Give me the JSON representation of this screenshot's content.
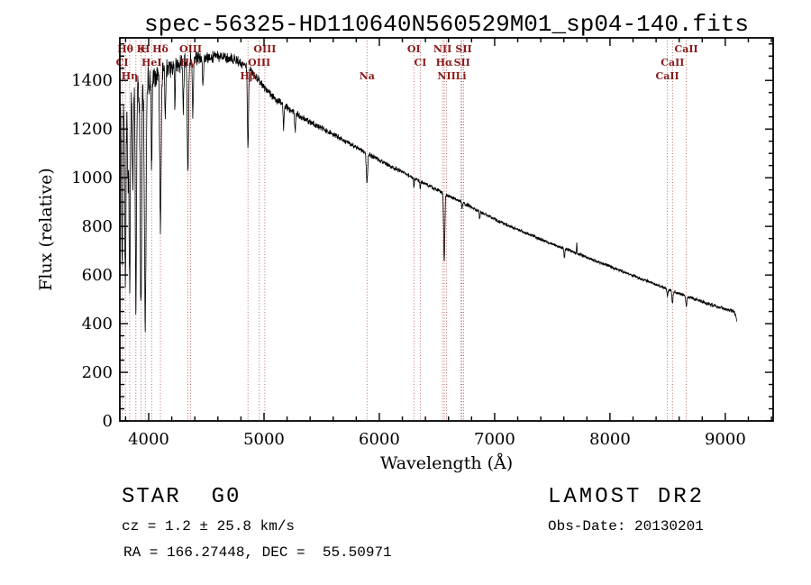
{
  "title": "spec-56325-HD110640N560529M01_sp04-140.fits",
  "footer": {
    "object_class": "STAR",
    "subclass": "G0",
    "survey": "LAMOST DR2",
    "cz_line": "cz = 1.2 ± 25.8 km/s",
    "obs_date_line": "Obs-Date: 20130201",
    "radec_line": "RA = 166.27448, DEC =  55.50971"
  },
  "chart_data": {
    "type": "line",
    "title": "spec-56325-HD110640N560529M01_sp04-140.fits",
    "xlabel": "Wavelength (Å)",
    "ylabel": "Flux (relative)",
    "xlim": [
      3750,
      9415
    ],
    "ylim": [
      0,
      1575
    ],
    "x_ticks": [
      4000,
      5000,
      6000,
      7000,
      8000,
      9000
    ],
    "y_ticks": [
      0,
      200,
      400,
      600,
      800,
      1000,
      1200,
      1400
    ],
    "x_minor_step": 200,
    "y_minor_step": 50,
    "grid": false,
    "legend": "none",
    "line_color": "#000000",
    "marker_line_color": "#b05858",
    "marker_label_color": "#8b1a1a",
    "seed": 20130201,
    "sample_step": 2,
    "wavelength_range": [
      3752,
      9100
    ],
    "continuum": [
      [
        3750,
        1280
      ],
      [
        3850,
        1330
      ],
      [
        3950,
        1375
      ],
      [
        4050,
        1415
      ],
      [
        4150,
        1448
      ],
      [
        4250,
        1468
      ],
      [
        4350,
        1480
      ],
      [
        4450,
        1492
      ],
      [
        4550,
        1500
      ],
      [
        4650,
        1498
      ],
      [
        4750,
        1485
      ],
      [
        4850,
        1458
      ],
      [
        4950,
        1405
      ],
      [
        5050,
        1345
      ],
      [
        5150,
        1305
      ],
      [
        5250,
        1272
      ],
      [
        5350,
        1243
      ],
      [
        5450,
        1216
      ],
      [
        5550,
        1190
      ],
      [
        5650,
        1164
      ],
      [
        5750,
        1138
      ],
      [
        5850,
        1112
      ],
      [
        5950,
        1086
      ],
      [
        6050,
        1060
      ],
      [
        6150,
        1035
      ],
      [
        6250,
        1010
      ],
      [
        6350,
        986
      ],
      [
        6450,
        962
      ],
      [
        6550,
        938
      ],
      [
        6650,
        914
      ],
      [
        6750,
        890
      ],
      [
        6850,
        866
      ],
      [
        6950,
        842
      ],
      [
        7050,
        818
      ],
      [
        7150,
        797
      ],
      [
        7250,
        777
      ],
      [
        7350,
        757
      ],
      [
        7450,
        737
      ],
      [
        7550,
        718
      ],
      [
        7650,
        700
      ],
      [
        7750,
        682
      ],
      [
        7850,
        663
      ],
      [
        7950,
        645
      ],
      [
        8050,
        626
      ],
      [
        8150,
        607
      ],
      [
        8250,
        588
      ],
      [
        8350,
        569
      ],
      [
        8450,
        551
      ],
      [
        8550,
        533
      ],
      [
        8650,
        515
      ],
      [
        8750,
        498
      ],
      [
        8850,
        482
      ],
      [
        8950,
        467
      ],
      [
        9040,
        456
      ],
      [
        9075,
        450
      ],
      [
        9090,
        430
      ],
      [
        9100,
        408
      ]
    ],
    "absorption_lines": [
      [
        3715,
        6,
        380
      ],
      [
        3737,
        5,
        560
      ],
      [
        3770,
        5,
        680
      ],
      [
        3798,
        5,
        740
      ],
      [
        3820,
        4,
        320
      ],
      [
        3835,
        5,
        800
      ],
      [
        3862,
        4,
        380
      ],
      [
        3889,
        5,
        880
      ],
      [
        3933,
        6,
        940
      ],
      [
        3970,
        7,
        970
      ],
      [
        4026,
        4,
        360
      ],
      [
        4102,
        6,
        630
      ],
      [
        4144,
        4,
        190
      ],
      [
        4227,
        3,
        170
      ],
      [
        4300,
        4,
        210
      ],
      [
        4340,
        6,
        450
      ],
      [
        4383,
        4,
        230
      ],
      [
        4471,
        4,
        120
      ],
      [
        4861,
        5,
        320
      ],
      [
        5170,
        4,
        95
      ],
      [
        5270,
        4,
        75
      ],
      [
        5893,
        6,
        115
      ],
      [
        6300,
        3,
        38
      ],
      [
        6355,
        3,
        28
      ],
      [
        6563,
        5,
        285
      ],
      [
        6717,
        3,
        30
      ],
      [
        6870,
        3,
        32
      ],
      [
        7605,
        4,
        38
      ],
      [
        7712,
        2,
        -48
      ],
      [
        8498,
        4,
        28
      ],
      [
        8542,
        5,
        48
      ],
      [
        8662,
        5,
        40
      ]
    ],
    "noise_profile": [
      [
        3750,
        100
      ],
      [
        3850,
        92
      ],
      [
        3950,
        82
      ],
      [
        4050,
        66
      ],
      [
        4200,
        48
      ],
      [
        4400,
        34
      ],
      [
        4600,
        27
      ],
      [
        4800,
        23
      ],
      [
        5000,
        19
      ],
      [
        5300,
        16
      ],
      [
        5600,
        13
      ],
      [
        6000,
        12
      ],
      [
        6400,
        10
      ],
      [
        6800,
        9
      ],
      [
        7200,
        8
      ],
      [
        7600,
        8
      ],
      [
        8000,
        8
      ],
      [
        8400,
        8
      ],
      [
        8800,
        9
      ],
      [
        9100,
        10
      ]
    ],
    "spectral_markers": [
      {
        "label": "Hθ",
        "wavelength": 3798,
        "row": 0
      },
      {
        "label": "K",
        "wavelength": 3933,
        "row": 0
      },
      {
        "label": "H",
        "wavelength": 3970,
        "row": 0
      },
      {
        "label": "Hδ",
        "wavelength": 4102,
        "row": 0
      },
      {
        "label": "OIII",
        "wavelength": 4363,
        "row": 0
      },
      {
        "label": "OIII",
        "wavelength": 5007,
        "row": 0
      },
      {
        "label": "OI",
        "wavelength": 6300,
        "row": 0
      },
      {
        "label": "NII",
        "wavelength": 6548,
        "row": 0
      },
      {
        "label": "SII",
        "wavelength": 6731,
        "row": 0
      },
      {
        "label": "CaII",
        "wavelength": 8662,
        "row": 0
      },
      {
        "label": "CI",
        "wavelength": 3770,
        "row": 1
      },
      {
        "label": "HeI",
        "wavelength": 4026,
        "row": 1
      },
      {
        "label": "Hγ",
        "wavelength": 4340,
        "row": 1
      },
      {
        "label": "OIII",
        "wavelength": 4959,
        "row": 1
      },
      {
        "label": "CI",
        "wavelength": 6355,
        "row": 1
      },
      {
        "label": "Hα",
        "wavelength": 6563,
        "row": 1
      },
      {
        "label": "SII",
        "wavelength": 6717,
        "row": 1
      },
      {
        "label": "CaII",
        "wavelength": 8542,
        "row": 1
      },
      {
        "label": "Hη",
        "wavelength": 3835,
        "row": 2
      },
      {
        "label": "",
        "wavelength": 3889,
        "row": 2
      },
      {
        "label": "Hβ",
        "wavelength": 4861,
        "row": 2
      },
      {
        "label": "Na",
        "wavelength": 5893,
        "row": 2
      },
      {
        "label": "NII",
        "wavelength": 6583,
        "row": 2
      },
      {
        "label": "Li",
        "wavelength": 6708,
        "row": 2
      },
      {
        "label": "CaII",
        "wavelength": 8498,
        "row": 2
      }
    ]
  }
}
